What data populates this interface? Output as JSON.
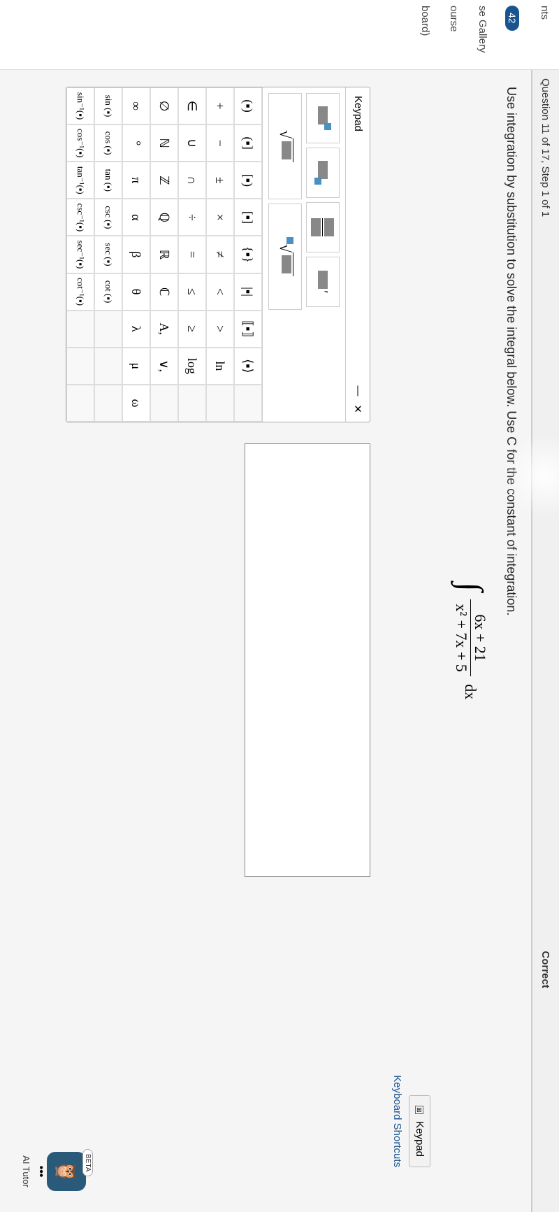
{
  "sidebar": {
    "items": [
      "nts",
      "se Gallery",
      "ourse",
      "board)"
    ],
    "badge": "42"
  },
  "topbar": {
    "title": "Question 11 of 17, Step 1 of 1",
    "status": "Correct"
  },
  "question": {
    "instruction": "Use integration by substitution to solve the integral below. Use C for the constant of integration.",
    "integral_numerator": "6x + 21",
    "integral_denominator": "x² + 7x + 5",
    "integral_dx": "dx"
  },
  "toolbar": {
    "keypad_label": "Keypad",
    "shortcuts_label": "Keyboard Shortcuts"
  },
  "keypad": {
    "title": "Keypad",
    "minimize": "—",
    "close": "✕",
    "rows": [
      [
        "(▪)",
        "(▪]",
        "[▪)",
        "[▪]",
        "{▪}",
        "|▪|",
        "⟦▪⟧",
        "⟨▪⟩",
        ""
      ],
      [
        "+",
        "−",
        "±",
        "×",
        "≠",
        "<",
        ">",
        "ln",
        ""
      ],
      [
        "∈",
        "∪",
        "∩",
        "÷",
        "=",
        "≤",
        "≥",
        "log",
        ""
      ],
      [
        "∅",
        "ℕ",
        "ℤ",
        "ℚ",
        "ℝ",
        "ℂ",
        "A,",
        "∨,",
        ""
      ],
      [
        "∞",
        "°",
        "π",
        "α",
        "β",
        "θ",
        "λ",
        "μ",
        "ω"
      ],
      [
        "sin (▪)",
        "cos (▪)",
        "tan (▪)",
        "csc (▪)",
        "sec (▪)",
        "cot (▪)",
        "",
        "",
        ""
      ],
      [
        "sin⁻¹(▪)",
        "cos⁻¹(▪)",
        "tan⁻¹(▪)",
        "csc⁻¹(▪)",
        "sec⁻¹(▪)",
        "cot⁻¹(▪)",
        "",
        "",
        ""
      ]
    ]
  },
  "ai_tutor": {
    "beta": "BETA",
    "dots": "•••",
    "label": "AI Tutor"
  }
}
